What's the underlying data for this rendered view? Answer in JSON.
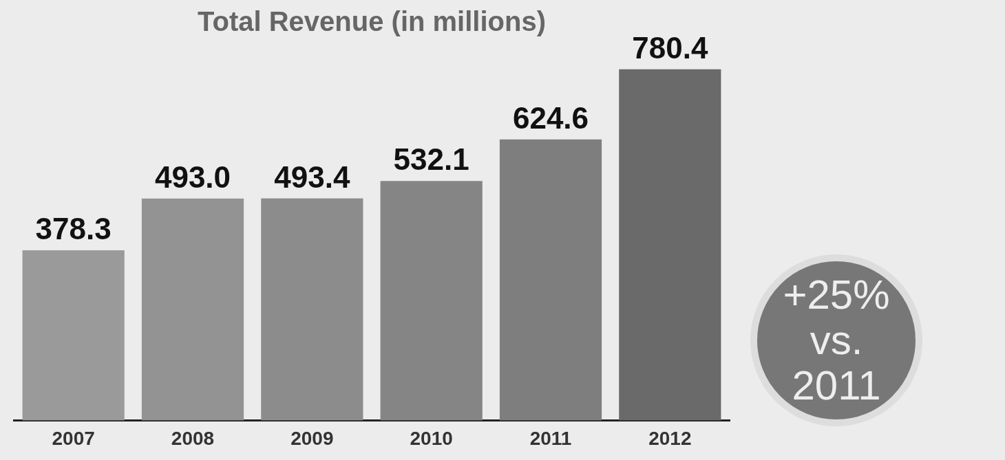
{
  "chart_data": {
    "type": "bar",
    "title": "Total Revenue (in millions)",
    "categories": [
      "2007",
      "2008",
      "2009",
      "2010",
      "2011",
      "2012"
    ],
    "values": [
      378.3,
      493.0,
      493.4,
      532.1,
      624.6,
      780.4
    ],
    "colors": [
      "#9a9a9a",
      "#939393",
      "#8c8c8c",
      "#858585",
      "#7e7e7e",
      "#6a6a6a"
    ],
    "value_labels": [
      "378.3",
      "493.0",
      "493.4",
      "532.1",
      "624.6",
      "780.4"
    ],
    "grid": false,
    "legend": false,
    "annotations": [
      "+25% vs. 2011"
    ]
  }
}
